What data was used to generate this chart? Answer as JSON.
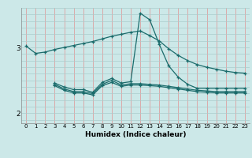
{
  "xlabel": "Humidex (Indice chaleur)",
  "bg_color": "#cce8e8",
  "grid_color_v": "#dda0a0",
  "grid_color_h": "#aacccc",
  "line_color": "#1a6b6b",
  "xlim": [
    -0.5,
    23.5
  ],
  "ylim": [
    1.85,
    3.6
  ],
  "yticks": [
    2,
    3
  ],
  "xticks": [
    0,
    1,
    2,
    3,
    4,
    5,
    6,
    7,
    8,
    9,
    10,
    11,
    12,
    13,
    14,
    15,
    16,
    17,
    18,
    19,
    20,
    21,
    22,
    23
  ],
  "lines": [
    {
      "x": [
        0,
        1,
        2,
        3,
        4,
        5,
        6,
        7,
        8,
        9,
        10,
        11,
        12,
        13,
        14,
        15,
        16,
        17,
        18,
        19,
        20,
        21,
        22,
        23
      ],
      "y": [
        3.02,
        2.91,
        2.93,
        2.97,
        3.0,
        3.03,
        3.06,
        3.09,
        3.13,
        3.17,
        3.2,
        3.23,
        3.25,
        3.18,
        3.1,
        2.98,
        2.88,
        2.8,
        2.74,
        2.7,
        2.67,
        2.64,
        2.62,
        2.61
      ]
    },
    {
      "x": [
        3,
        4,
        5,
        6,
        7,
        8,
        9,
        10,
        11,
        12,
        13,
        14,
        15,
        16,
        17,
        18,
        19,
        20,
        21,
        22,
        23
      ],
      "y": [
        2.46,
        2.4,
        2.36,
        2.36,
        2.32,
        2.47,
        2.53,
        2.46,
        2.48,
        3.52,
        3.42,
        3.05,
        2.72,
        2.55,
        2.44,
        2.38,
        2.38,
        2.38,
        2.38,
        2.38,
        2.38
      ]
    },
    {
      "x": [
        3,
        4,
        5,
        6,
        7,
        8,
        9,
        10,
        11,
        12,
        13,
        14,
        15,
        16,
        17,
        18,
        19,
        20,
        21,
        22,
        23
      ],
      "y": [
        2.44,
        2.37,
        2.33,
        2.33,
        2.3,
        2.44,
        2.5,
        2.43,
        2.45,
        2.45,
        2.44,
        2.43,
        2.41,
        2.39,
        2.37,
        2.35,
        2.34,
        2.33,
        2.33,
        2.33,
        2.33
      ]
    },
    {
      "x": [
        3,
        4,
        5,
        6,
        7,
        8,
        9,
        10,
        11,
        12,
        13,
        14,
        15,
        16,
        17,
        18,
        19,
        20,
        21,
        22,
        23
      ],
      "y": [
        2.42,
        2.35,
        2.31,
        2.31,
        2.28,
        2.42,
        2.47,
        2.41,
        2.43,
        2.43,
        2.42,
        2.41,
        2.39,
        2.37,
        2.35,
        2.33,
        2.32,
        2.31,
        2.31,
        2.31,
        2.31
      ]
    }
  ]
}
